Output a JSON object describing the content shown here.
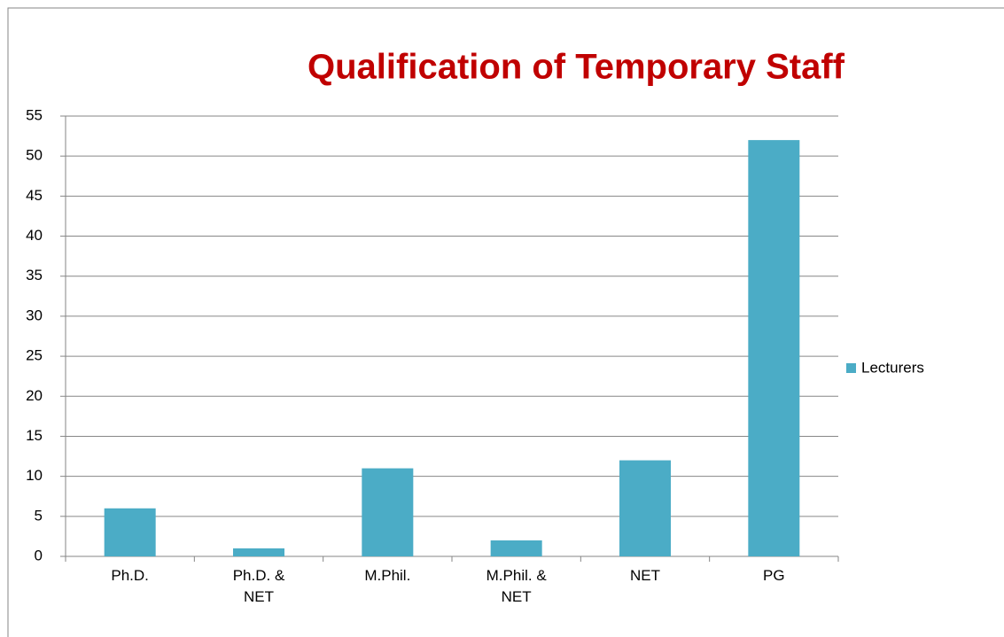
{
  "chart_data": {
    "type": "bar",
    "title": "Qualification of Temporary Staff",
    "categories": [
      "Ph.D.",
      "Ph.D. & NET",
      "M.Phil.",
      "M.Phil. & NET",
      "NET",
      "PG"
    ],
    "series": [
      {
        "name": "Lecturers",
        "color": "#4bacc6",
        "values": [
          6,
          1,
          11,
          2,
          12,
          52
        ]
      }
    ],
    "ylim": [
      0,
      55
    ],
    "yticks": [
      0,
      5,
      10,
      15,
      20,
      25,
      30,
      35,
      40,
      45,
      50,
      55
    ],
    "grid": true,
    "legend": "right"
  }
}
